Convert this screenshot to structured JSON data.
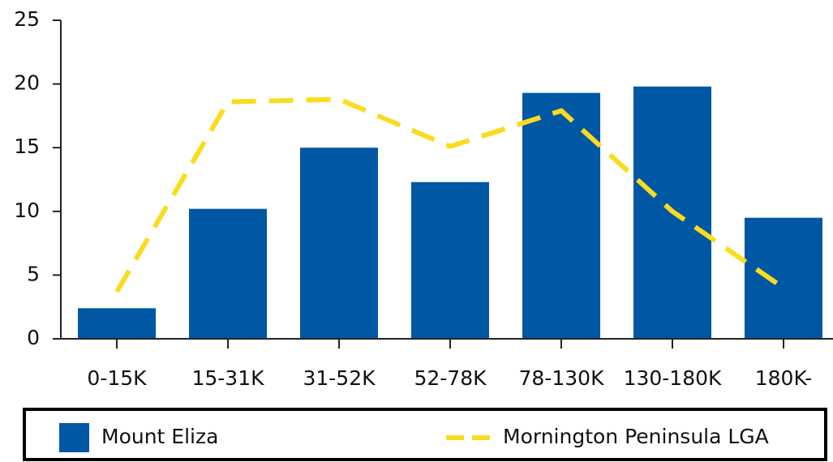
{
  "chart_data": {
    "type": "bar",
    "categories": [
      "0-15K",
      "15-31K",
      "31-52K",
      "52-78K",
      "78-130K",
      "130-180K",
      "180K-"
    ],
    "series": [
      {
        "name": "Mount Eliza",
        "type": "bar",
        "color": "#0057a3",
        "values": [
          2.4,
          10.2,
          15.0,
          12.3,
          19.3,
          19.8,
          9.5
        ]
      },
      {
        "name": "Mornington Peninsula LGA",
        "type": "line",
        "color": "#fadc1e",
        "values": [
          3.7,
          18.6,
          18.8,
          15.1,
          17.9,
          10.0,
          4.0
        ]
      }
    ],
    "ylim": [
      0,
      25
    ],
    "yticks": [
      0,
      5,
      10,
      15,
      20,
      25
    ],
    "grid": false,
    "legend": "bottom"
  }
}
